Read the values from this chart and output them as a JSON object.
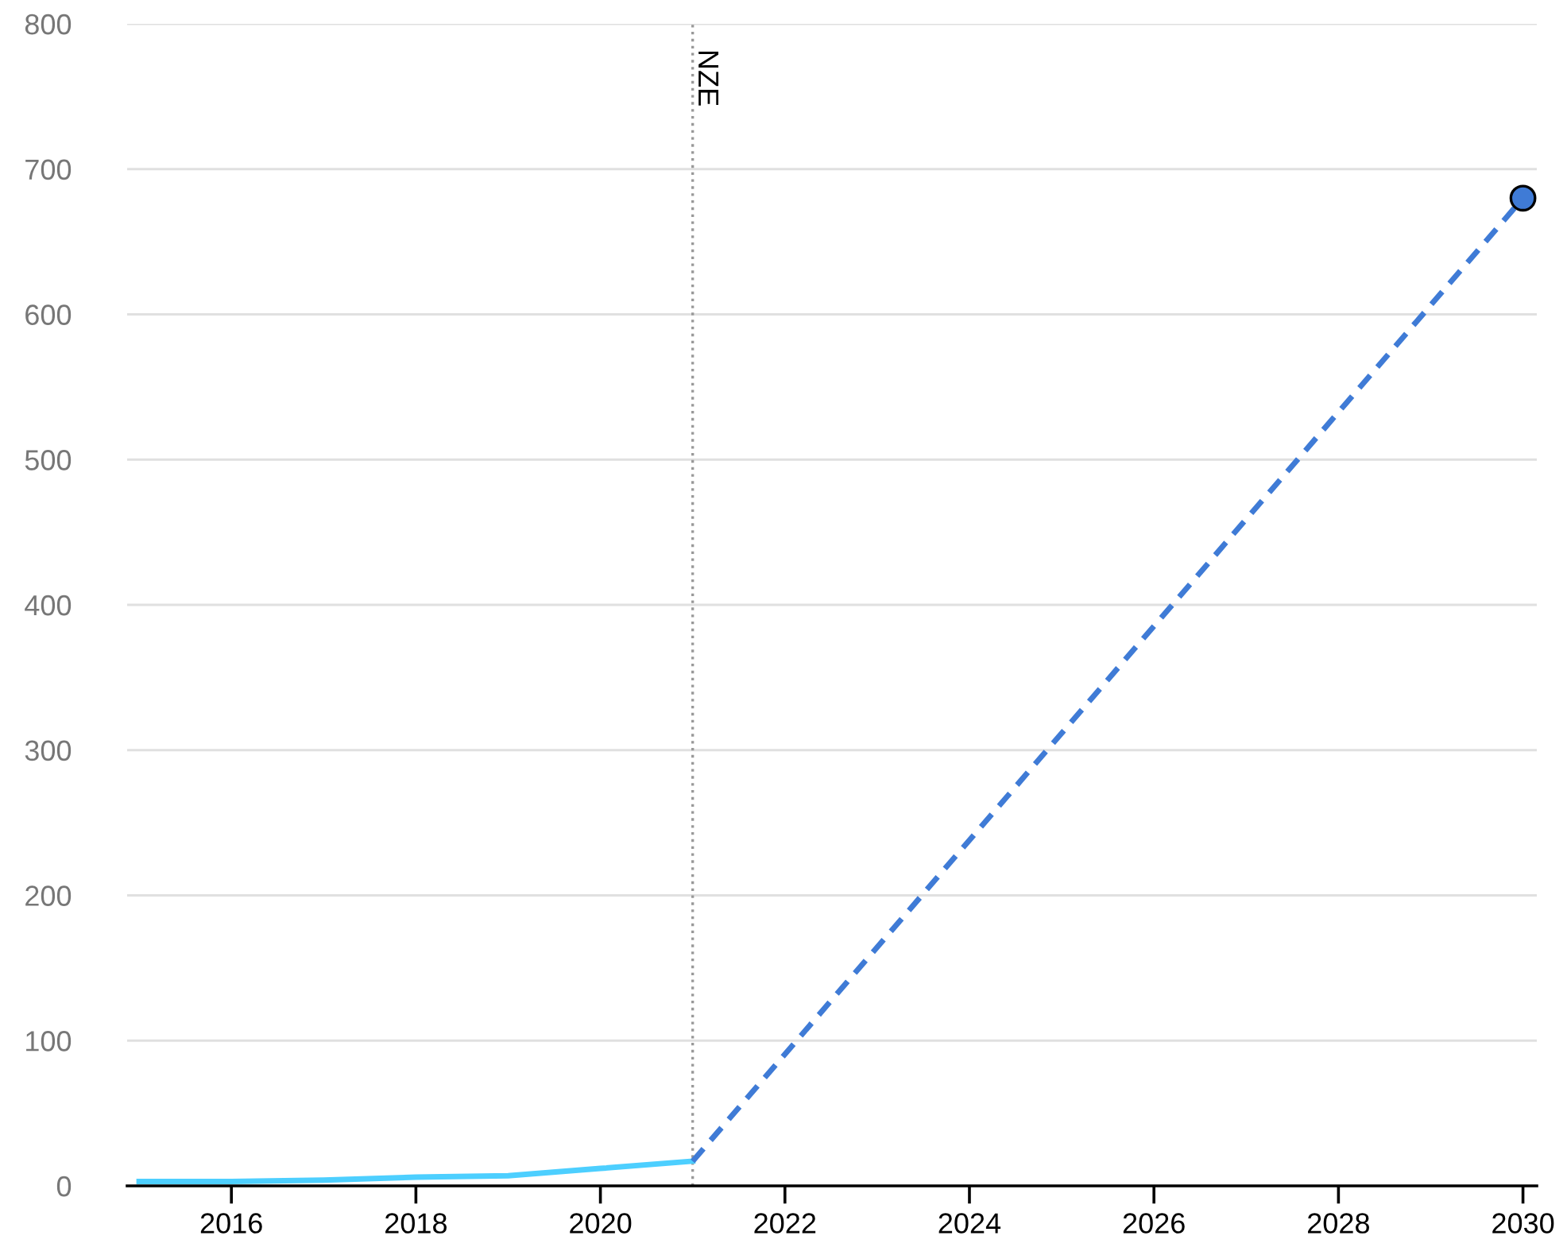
{
  "chart_data": {
    "type": "line",
    "series": [
      {
        "color": "#4dcfff",
        "x": [
          2015,
          2016,
          2017,
          2018,
          2019,
          2020,
          2021
        ],
        "values": [
          3,
          3,
          4,
          6,
          7,
          12,
          17
        ],
        "line_style": "solid"
      },
      {
        "color": "#3f7bd6",
        "x": [
          2021,
          2030
        ],
        "values": [
          17,
          680
        ],
        "line_style": "dashed"
      },
      {
        "type": "scatter",
        "color": "#3f7bd6",
        "x": [
          2030
        ],
        "values": [
          680
        ],
        "marker": "circle"
      }
    ],
    "xlim": [
      2014.87,
      2030.15
    ],
    "xticks": [
      2016,
      2018,
      2020,
      2022,
      2024,
      2026,
      2028,
      2030
    ],
    "ylim": [
      0,
      800
    ],
    "yticks": [
      0,
      100,
      200,
      300,
      400,
      500,
      600,
      700,
      800
    ],
    "grid": "y",
    "ref_lines": [
      {
        "axis": "x",
        "value": 2021,
        "label": "NZE",
        "color": "#999999",
        "line_style": "dotted"
      }
    ]
  }
}
